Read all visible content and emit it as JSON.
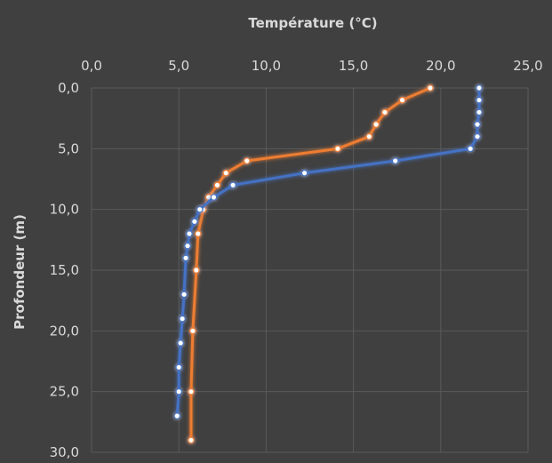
{
  "chart_data": {
    "type": "line",
    "title": "",
    "xlabel": "Température (°C)",
    "ylabel": "Profondeur (m)",
    "xlim": [
      0,
      25
    ],
    "ylim": [
      0,
      30
    ],
    "x_axis_position": "top",
    "y_axis_inverted": true,
    "grid": true,
    "x_ticks": [
      "0,0",
      "5,0",
      "10,0",
      "15,0",
      "20,0",
      "25,0"
    ],
    "y_ticks": [
      "0,0",
      "5,0",
      "10,0",
      "15,0",
      "20,0",
      "25,0",
      "30,0"
    ],
    "series": [
      {
        "color": "#ed7d31",
        "points": [
          [
            19.4,
            0
          ],
          [
            17.8,
            1
          ],
          [
            16.8,
            2
          ],
          [
            16.3,
            3
          ],
          [
            15.9,
            4
          ],
          [
            14.1,
            5
          ],
          [
            8.9,
            6
          ],
          [
            7.7,
            7
          ],
          [
            7.2,
            8
          ],
          [
            6.7,
            9
          ],
          [
            6.4,
            10
          ],
          [
            6.1,
            12
          ],
          [
            6.0,
            15
          ],
          [
            5.8,
            20
          ],
          [
            5.7,
            25
          ],
          [
            5.7,
            29
          ]
        ]
      },
      {
        "color": "#4472c4",
        "points": [
          [
            22.2,
            0
          ],
          [
            22.2,
            1
          ],
          [
            22.2,
            2
          ],
          [
            22.1,
            3
          ],
          [
            22.1,
            4
          ],
          [
            21.7,
            5
          ],
          [
            17.4,
            6
          ],
          [
            12.2,
            7
          ],
          [
            8.1,
            8
          ],
          [
            7.0,
            9
          ],
          [
            6.2,
            10
          ],
          [
            5.9,
            11
          ],
          [
            5.6,
            12
          ],
          [
            5.5,
            13
          ],
          [
            5.4,
            14
          ],
          [
            5.3,
            17
          ],
          [
            5.2,
            19
          ],
          [
            5.1,
            21
          ],
          [
            5.0,
            23
          ],
          [
            5.0,
            25
          ],
          [
            4.9,
            27
          ]
        ]
      }
    ]
  }
}
